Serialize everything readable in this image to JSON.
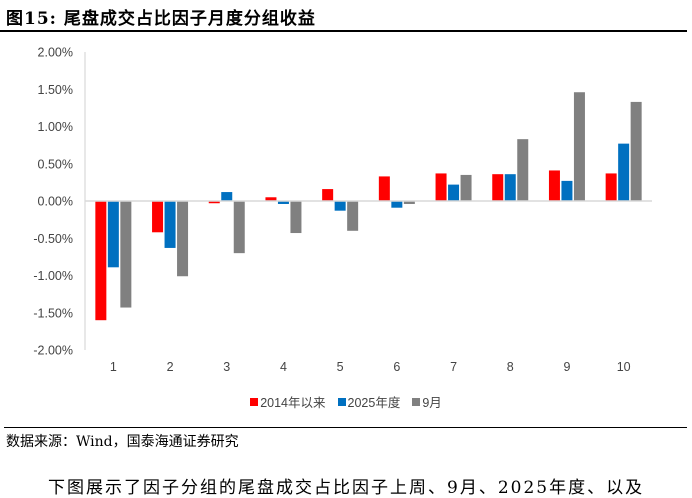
{
  "title": "图15:  尾盘成交占比因子月度分组收益",
  "source": "数据来源：Wind，国泰海通证券研究",
  "body_text": "下图展示了因子分组的尾盘成交占比因子上周、9月、2025年度、以及",
  "chart_data": {
    "type": "bar",
    "title": "",
    "xlabel": "",
    "ylabel": "",
    "categories": [
      "1",
      "2",
      "3",
      "4",
      "5",
      "6",
      "7",
      "8",
      "9",
      "10"
    ],
    "ylim": [
      -2.0,
      2.0
    ],
    "yticks": [
      "2.00%",
      "1.50%",
      "1.00%",
      "0.50%",
      "0.00%",
      "-0.50%",
      "-1.00%",
      "-1.50%",
      "-2.00%"
    ],
    "ytick_values": [
      2.0,
      1.5,
      1.0,
      0.5,
      0.0,
      -0.5,
      -1.0,
      -1.5,
      -2.0
    ],
    "unit": "%",
    "grid": false,
    "legend_placement": "bottom",
    "series": [
      {
        "name": "2014年以来",
        "color": "#ff0000",
        "values": [
          -1.6,
          -0.42,
          -0.03,
          0.05,
          0.16,
          0.33,
          0.37,
          0.36,
          0.41,
          0.37
        ]
      },
      {
        "name": "2025年度",
        "color": "#0070c0",
        "values": [
          -0.89,
          -0.63,
          0.12,
          -0.04,
          -0.13,
          -0.09,
          0.22,
          0.36,
          0.27,
          0.77
        ]
      },
      {
        "name": "9月",
        "color": "#808080",
        "values": [
          -1.43,
          -1.01,
          -0.7,
          -0.43,
          -0.4,
          -0.04,
          0.35,
          0.83,
          1.46,
          1.33
        ]
      }
    ]
  }
}
